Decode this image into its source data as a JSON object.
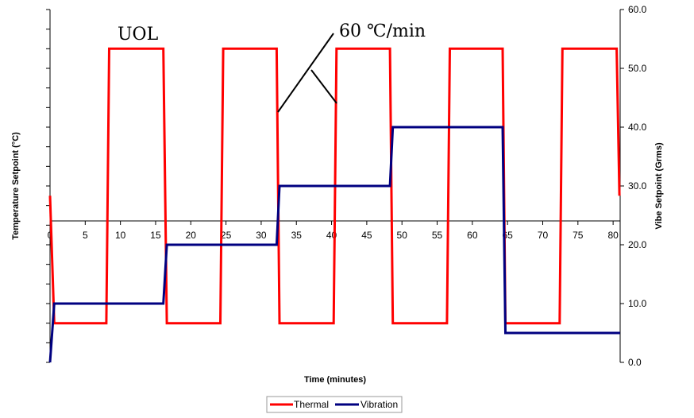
{
  "chart_data": {
    "type": "line",
    "title": "",
    "xlabel": "Time (minutes)",
    "ylabel": "Temperature Setpoint (°C)",
    "y2label": "Vibe Setpoint (Grms)",
    "xlim": [
      0,
      81
    ],
    "x_ticks": [
      0,
      5,
      10,
      15,
      20,
      25,
      30,
      35,
      40,
      45,
      50,
      55,
      60,
      65,
      70,
      75,
      80
    ],
    "x_tick_labels": [
      "0",
      "5",
      "10",
      "15",
      "20",
      "25",
      "30",
      "35",
      "40",
      "45",
      "50",
      "55",
      "60",
      "65",
      "70",
      "75",
      "80"
    ],
    "ylim": [
      -60,
      120
    ],
    "y_ticks": [
      -60,
      -50,
      -40,
      -30,
      -20,
      -10,
      0,
      10,
      20,
      30,
      40,
      50,
      60,
      70,
      80,
      90,
      100,
      110,
      120
    ],
    "y2lim": [
      0,
      60
    ],
    "y2_ticks": [
      0,
      10,
      20,
      30,
      40,
      50,
      60
    ],
    "y2_tick_labels": [
      "0.0",
      "10.0",
      "20.0",
      "30.0",
      "40.0",
      "50.0",
      "60.0"
    ],
    "grid": false,
    "legend_position": "bottom-center",
    "series": [
      {
        "name": "Thermal",
        "axis": "left",
        "color": "#ff0000",
        "x": [
          0,
          0.6,
          8,
          8.4,
          16.1,
          16.6,
          24.2,
          24.6,
          32.2,
          32.6,
          40.3,
          40.7,
          48.3,
          48.7,
          56.4,
          56.8,
          64.3,
          64.7,
          72.4,
          72.8,
          80.5,
          80.9
        ],
        "y": [
          25,
          -40,
          -40,
          100,
          100,
          -40,
          -40,
          100,
          100,
          -40,
          -40,
          100,
          100,
          -40,
          -40,
          100,
          100,
          -40,
          -40,
          100,
          100,
          25
        ]
      },
      {
        "name": "Vibration",
        "axis": "right",
        "color": "#000080",
        "x": [
          0,
          0.6,
          16.1,
          16.6,
          32.2,
          32.6,
          48.3,
          48.7,
          64.3,
          64.7,
          81
        ],
        "y": [
          0,
          10,
          10,
          20,
          20,
          30,
          30,
          40,
          40,
          5,
          5
        ]
      }
    ],
    "annotations": [
      {
        "text": "UOL"
      },
      {
        "text": "60 ℃/min"
      }
    ]
  }
}
